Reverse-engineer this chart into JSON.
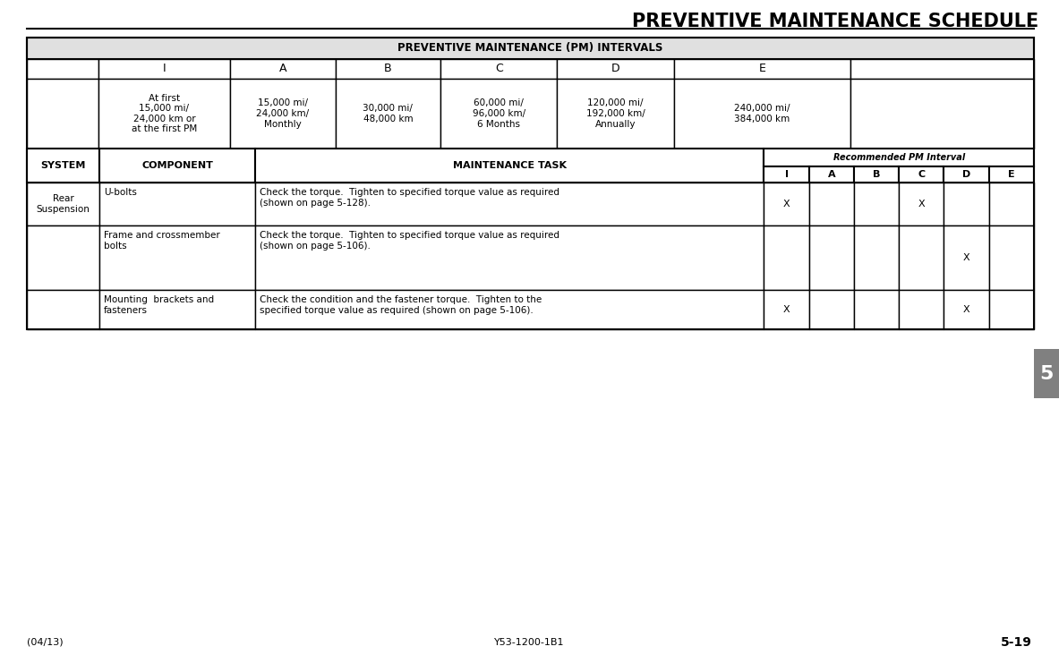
{
  "title": "PREVENTIVE MAINTENANCE SCHEDULE",
  "table_title": "PREVENTIVE MAINTENANCE (PM) INTERVALS",
  "interval_headers": [
    "I",
    "A",
    "B",
    "C",
    "D",
    "E"
  ],
  "interval_descriptions": [
    "At first\n15,000 mi/\n24,000 km or\nat the first PM",
    "15,000 mi/\n24,000 km/\nMonthly",
    "30,000 mi/\n48,000 km",
    "60,000 mi/\n96,000 km/\n6 Months",
    "120,000 mi/\n192,000 km/\nAnnually",
    "240,000 mi/\n384,000 km"
  ],
  "rows": [
    {
      "system": "Rear\nSuspension",
      "component": "U-bolts",
      "task": "Check the torque.  Tighten to specified torque value as required\n(shown on page 5-128).",
      "marks": {
        "I": "X",
        "A": "",
        "B": "",
        "C": "X",
        "D": "",
        "E": ""
      }
    },
    {
      "system": "",
      "component": "Frame and crossmember\nbolts",
      "task": "Check the torque.  Tighten to specified torque value as required\n(shown on page 5-106).",
      "marks": {
        "I": "",
        "A": "",
        "B": "",
        "C": "",
        "D": "X",
        "E": ""
      }
    },
    {
      "system": "",
      "component": "Mounting  brackets and\nfasteners",
      "task": "Check the condition and the fastener torque.  Tighten to the\nspecified torque value as required (shown on page 5-106).",
      "marks": {
        "I": "X",
        "A": "",
        "B": "",
        "C": "",
        "D": "X",
        "E": ""
      }
    }
  ],
  "footer_left": "(04/13)",
  "footer_center": "Y53-1200-1B1",
  "footer_right": "5-19",
  "tab_number": "5",
  "bg_color": "#ffffff",
  "tab_color": "#808080"
}
